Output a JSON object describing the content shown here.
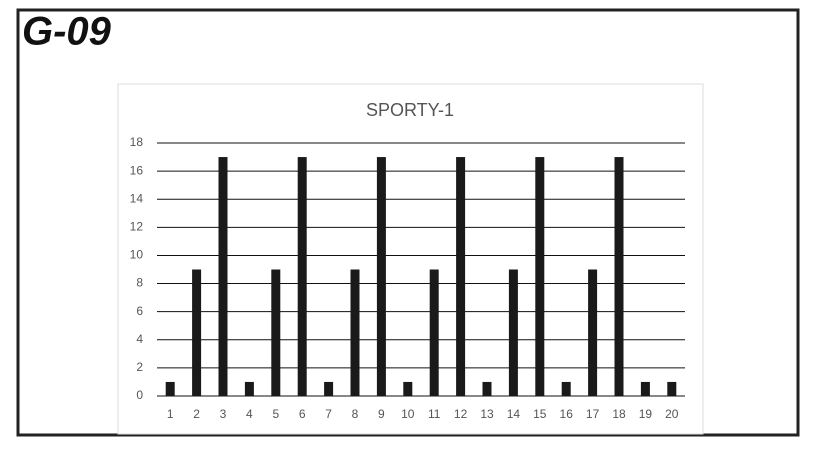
{
  "page_title": "G-09",
  "chart_data": {
    "type": "bar",
    "title": "SPORTY-1",
    "categories": [
      "1",
      "2",
      "3",
      "4",
      "5",
      "6",
      "7",
      "8",
      "9",
      "10",
      "11",
      "12",
      "13",
      "14",
      "15",
      "16",
      "17",
      "18",
      "19",
      "20"
    ],
    "values": [
      1,
      9,
      17,
      1,
      9,
      17,
      1,
      9,
      17,
      1,
      9,
      17,
      1,
      9,
      17,
      1,
      9,
      17,
      1,
      1
    ],
    "color": "#1a1a1a",
    "ylim": [
      0,
      18
    ],
    "yticks": [
      0,
      2,
      4,
      6,
      8,
      10,
      12,
      14,
      16,
      18
    ],
    "grid": true
  }
}
